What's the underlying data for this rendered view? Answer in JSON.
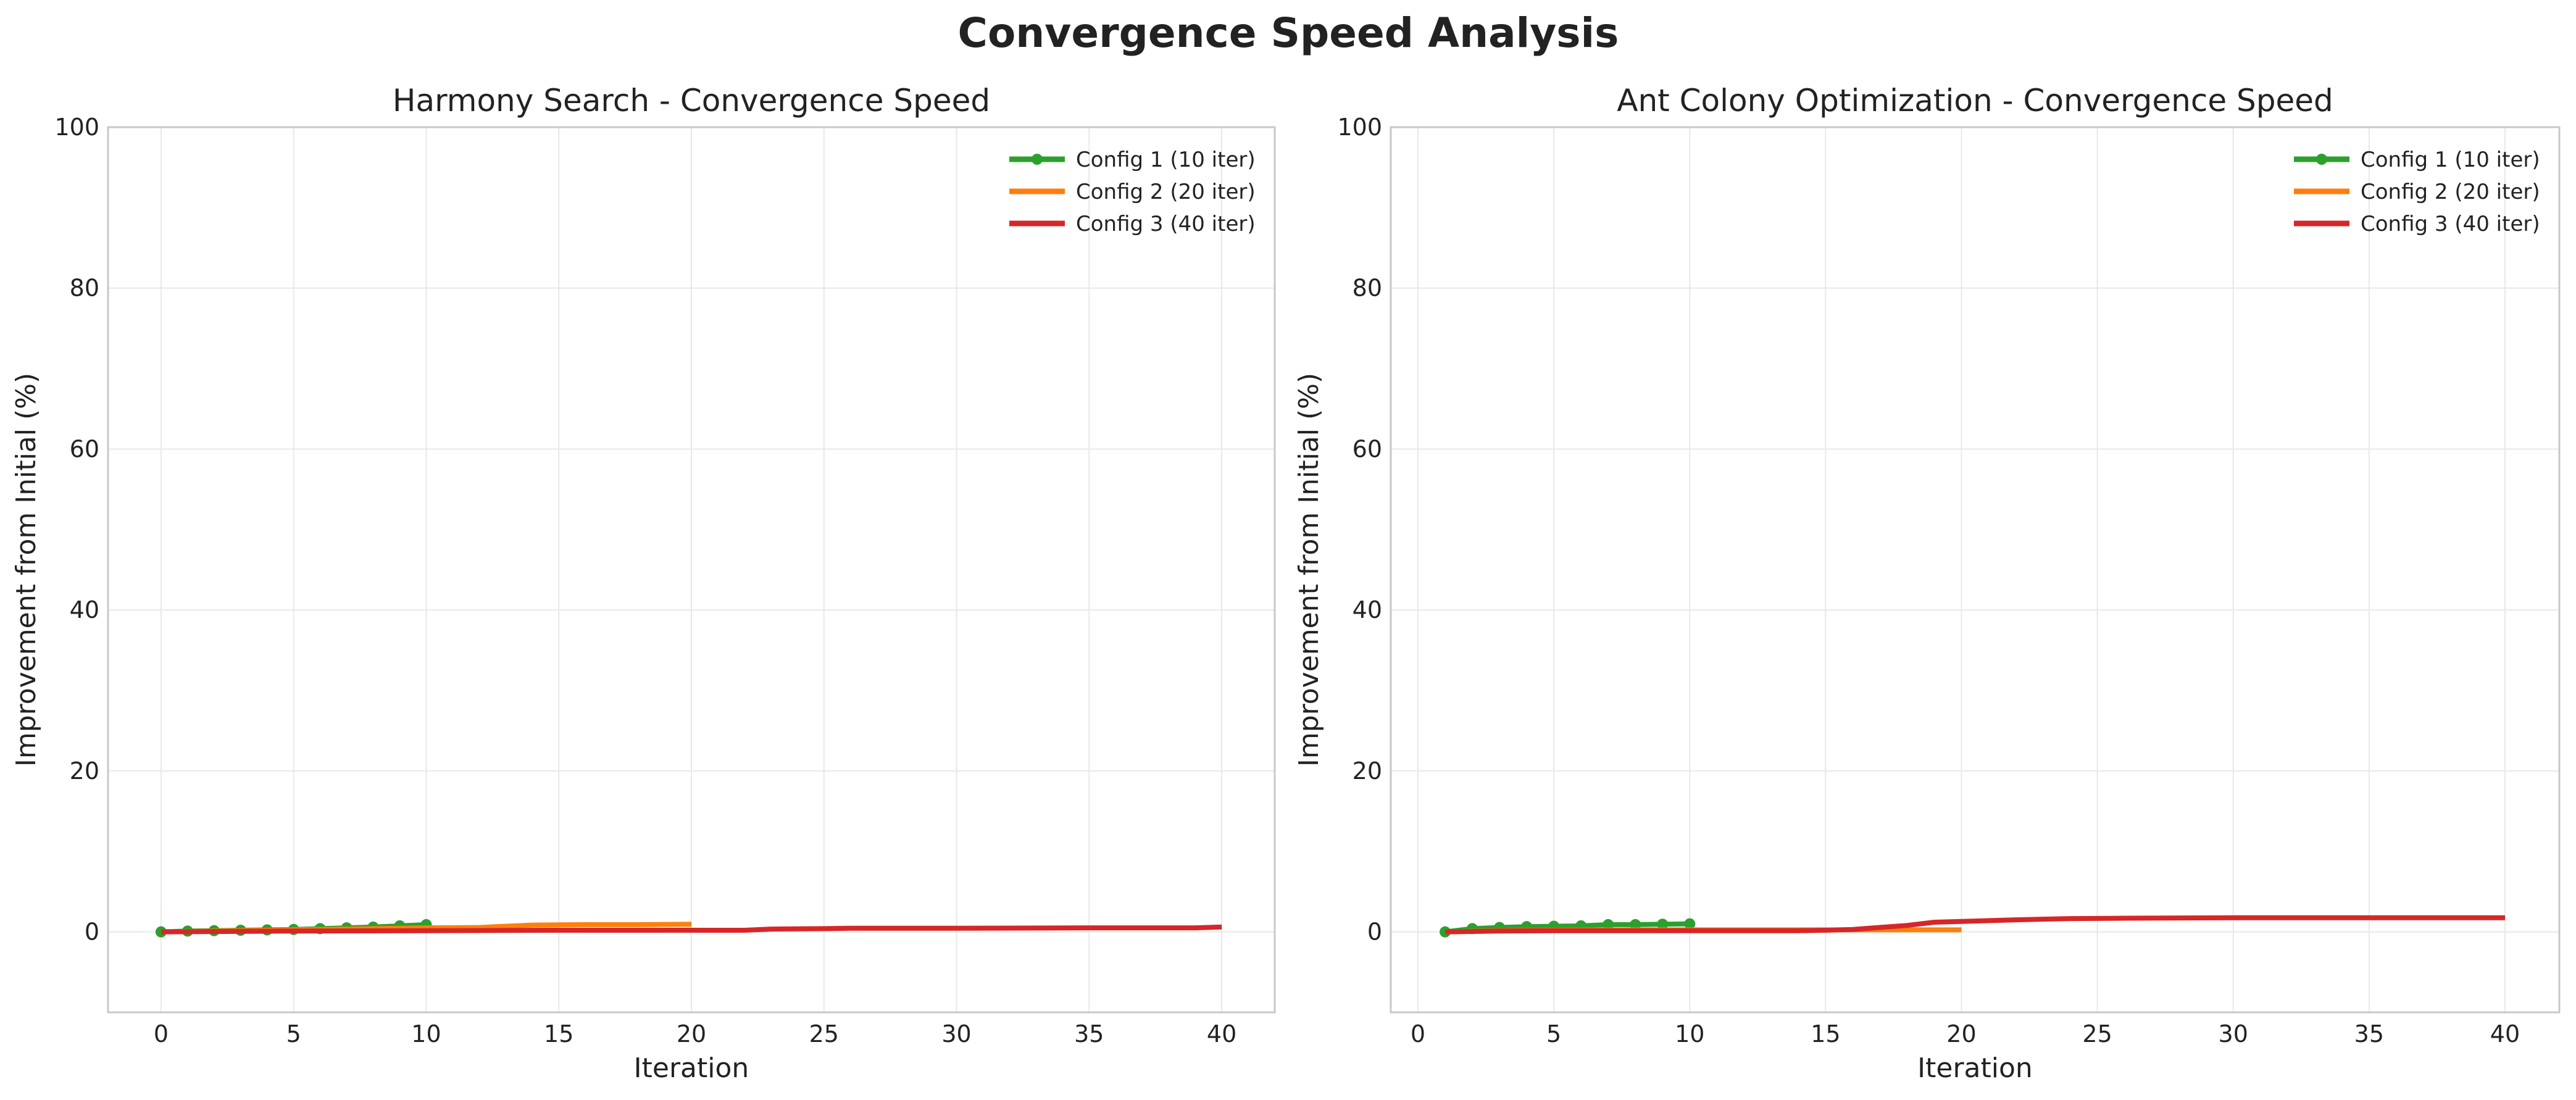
{
  "figure": {
    "title": "Convergence Speed Analysis"
  },
  "chart_data": [
    {
      "type": "line",
      "title": "Harmony Search - Convergence Speed",
      "xlabel": "Iteration",
      "ylabel": "Improvement from Initial (%)",
      "xlim": [
        -2,
        42
      ],
      "ylim": [
        -10,
        100
      ],
      "xticks": [
        0,
        5,
        10,
        15,
        20,
        25,
        30,
        35,
        40
      ],
      "yticks": [
        0,
        20,
        40,
        60,
        80,
        100
      ],
      "grid": true,
      "legend": "top-right",
      "series": [
        {
          "name": "Config 1 (10 iter)",
          "color": "#2ca02c",
          "markers": true,
          "x": [
            0,
            1,
            2,
            3,
            4,
            5,
            6,
            7,
            8,
            9,
            10
          ],
          "y": [
            0.0,
            0.1,
            0.15,
            0.2,
            0.25,
            0.3,
            0.4,
            0.5,
            0.6,
            0.75,
            0.9
          ]
        },
        {
          "name": "Config 2 (20 iter)",
          "color": "#ff7f0e",
          "markers": false,
          "x": [
            0,
            2,
            4,
            6,
            8,
            10,
            12,
            13,
            14,
            16,
            18,
            20
          ],
          "y": [
            0.0,
            0.1,
            0.2,
            0.3,
            0.4,
            0.5,
            0.55,
            0.7,
            0.85,
            0.9,
            0.9,
            0.95
          ]
        },
        {
          "name": "Config 3 (40 iter)",
          "color": "#d62728",
          "markers": false,
          "x": [
            0,
            5,
            10,
            15,
            20,
            22,
            23,
            25,
            26,
            30,
            35,
            39,
            40
          ],
          "y": [
            0.0,
            0.1,
            0.15,
            0.2,
            0.2,
            0.2,
            0.35,
            0.4,
            0.45,
            0.45,
            0.5,
            0.5,
            0.6
          ]
        }
      ]
    },
    {
      "type": "line",
      "title": "Ant Colony Optimization - Convergence Speed",
      "xlabel": "Iteration",
      "ylabel": "Improvement from Initial (%)",
      "xlim": [
        -1,
        42
      ],
      "ylim": [
        -10,
        100
      ],
      "xticks": [
        0,
        5,
        10,
        15,
        20,
        25,
        30,
        35,
        40
      ],
      "yticks": [
        0,
        20,
        40,
        60,
        80,
        100
      ],
      "grid": true,
      "legend": "top-right",
      "series": [
        {
          "name": "Config 1 (10 iter)",
          "color": "#2ca02c",
          "markers": true,
          "x": [
            1,
            2,
            3,
            4,
            5,
            6,
            7,
            8,
            9,
            10
          ],
          "y": [
            0.0,
            0.4,
            0.55,
            0.65,
            0.7,
            0.75,
            0.9,
            0.9,
            0.95,
            1.0
          ]
        },
        {
          "name": "Config 2 (20 iter)",
          "color": "#ff7f0e",
          "markers": false,
          "x": [
            1,
            3,
            5,
            8,
            10,
            12,
            15,
            18,
            20
          ],
          "y": [
            0.0,
            0.15,
            0.2,
            0.25,
            0.25,
            0.25,
            0.25,
            0.25,
            0.25
          ]
        },
        {
          "name": "Config 3 (40 iter)",
          "color": "#d62728",
          "markers": false,
          "x": [
            1,
            3,
            5,
            8,
            10,
            12,
            14,
            15,
            16,
            18,
            19,
            20,
            22,
            24,
            26,
            30,
            35,
            40
          ],
          "y": [
            0.0,
            0.1,
            0.15,
            0.15,
            0.15,
            0.15,
            0.15,
            0.2,
            0.3,
            0.8,
            1.2,
            1.3,
            1.5,
            1.65,
            1.7,
            1.75,
            1.75,
            1.75
          ]
        }
      ]
    }
  ]
}
